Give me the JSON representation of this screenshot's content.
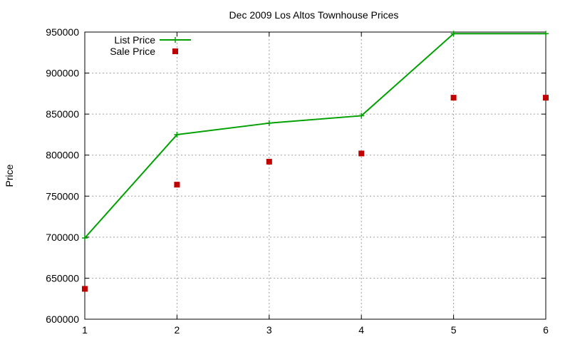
{
  "chart_data": {
    "type": "line",
    "title": "Dec 2009 Los Altos Townhouse Prices",
    "xlabel": "",
    "ylabel": "Price",
    "xlim": [
      1,
      6
    ],
    "ylim": [
      600000,
      950000
    ],
    "x_ticks": [
      1,
      2,
      3,
      4,
      5,
      6
    ],
    "y_ticks": [
      600000,
      650000,
      700000,
      750000,
      800000,
      850000,
      900000,
      950000
    ],
    "grid": true,
    "legend_position": "top-left",
    "series": [
      {
        "name": "List Price",
        "style": "line+cross",
        "color": "#00a000",
        "x": [
          1,
          2,
          3,
          4,
          5,
          6
        ],
        "values": [
          699000,
          825000,
          839000,
          848000,
          948000,
          948000
        ]
      },
      {
        "name": "Sale Price",
        "style": "square",
        "color": "#c00000",
        "x": [
          1,
          2,
          3,
          4,
          5,
          6
        ],
        "values": [
          637000,
          764000,
          792000,
          802000,
          870000,
          870000
        ]
      }
    ]
  }
}
